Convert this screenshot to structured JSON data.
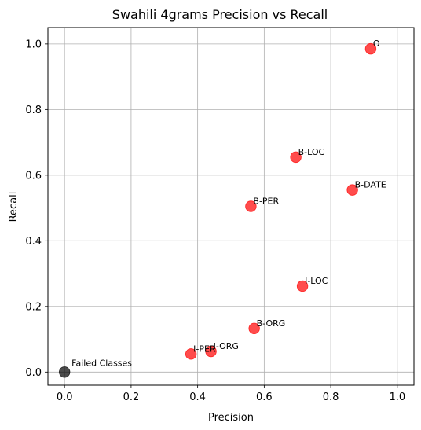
{
  "chart_data": {
    "type": "scatter",
    "title": "Swahili 4grams Precision vs Recall",
    "xlabel": "Precision",
    "ylabel": "Recall",
    "xlim": [
      -0.05,
      1.05
    ],
    "ylim": [
      -0.04,
      1.05
    ],
    "xticks": [
      "0.0",
      "0.2",
      "0.4",
      "0.6",
      "0.8",
      "1.0"
    ],
    "yticks": [
      "0.0",
      "0.2",
      "0.4",
      "0.6",
      "0.8",
      "1.0"
    ],
    "grid": true,
    "series": [
      {
        "color": "#ff0000",
        "points": [
          {
            "label": "O",
            "x": 0.92,
            "y": 0.985
          },
          {
            "label": "B-LOC",
            "x": 0.695,
            "y": 0.655
          },
          {
            "label": "B-DATE",
            "x": 0.865,
            "y": 0.555
          },
          {
            "label": "B-PER",
            "x": 0.56,
            "y": 0.505
          },
          {
            "label": "I-LOC",
            "x": 0.715,
            "y": 0.262
          },
          {
            "label": "B-ORG",
            "x": 0.57,
            "y": 0.133
          },
          {
            "label": "I-ORG",
            "x": 0.44,
            "y": 0.063
          },
          {
            "label": "I-PER",
            "x": 0.38,
            "y": 0.055
          }
        ]
      },
      {
        "color": "#000000",
        "points": [
          {
            "label": "Failed Classes",
            "x": 0.0,
            "y": 0.0
          }
        ]
      }
    ]
  }
}
